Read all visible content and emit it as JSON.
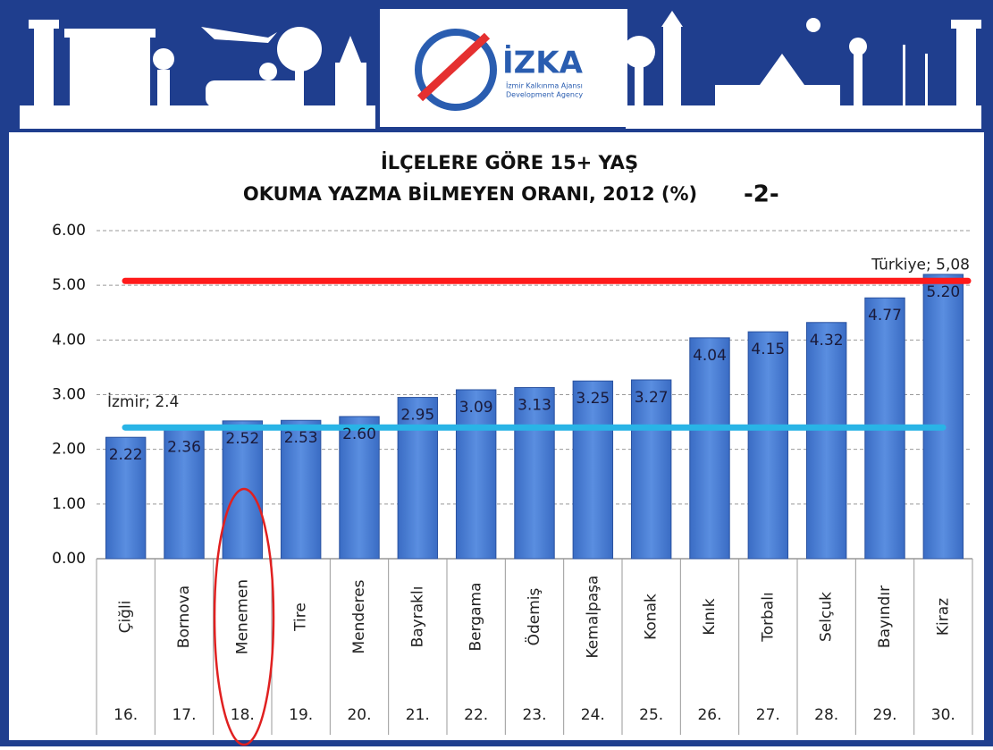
{
  "header": {
    "logo": "İZKA",
    "agency_tr": "İzmir Kalkınma Ajansı",
    "agency_en": "Development Agency"
  },
  "chart_data": {
    "type": "bar",
    "title_lines": [
      "İLÇELERE GÖRE 15+ YAŞ",
      "OKUMA YAZMA BİLMEYEN ORANI, 2012 (%)"
    ],
    "title_part": "-2-",
    "categories": [
      "Çiğli",
      "Bornova",
      "Menemen",
      "Tire",
      "Menderes",
      "Bayraklı",
      "Bergama",
      "Ödemiş",
      "Kemalpaşa",
      "Konak",
      "Kınık",
      "Torbalı",
      "Selçuk",
      "Bayındır",
      "Kiraz"
    ],
    "ranks": [
      "16.",
      "17.",
      "18.",
      "19.",
      "20.",
      "21.",
      "22.",
      "23.",
      "24.",
      "25.",
      "26.",
      "27.",
      "28.",
      "29.",
      "30."
    ],
    "values": [
      2.22,
      2.36,
      2.52,
      2.53,
      2.6,
      2.95,
      3.09,
      3.13,
      3.25,
      3.27,
      4.04,
      4.15,
      4.32,
      4.77,
      5.2
    ],
    "value_labels": [
      "2.22",
      "2.36",
      "2.52",
      "2.53",
      "2.60",
      "2.95",
      "3.09",
      "3.13",
      "3.25",
      "3.27",
      "4.04",
      "4.15",
      "4.32",
      "4.77",
      "5.20"
    ],
    "color": "#3a6cc4",
    "reference_lines": [
      {
        "label": "Türkiye; 5,08",
        "value": 5.08,
        "color": "#ff1a1a"
      },
      {
        "label": "İzmir; 2.4",
        "value": 2.4,
        "color": "#29b4e6"
      }
    ],
    "ylim": [
      0,
      6
    ],
    "yticks": [
      {
        "value": 0,
        "label": "0.00"
      },
      {
        "value": 1,
        "label": "1.00"
      },
      {
        "value": 2,
        "label": "2.00"
      },
      {
        "value": 3,
        "label": "3.00"
      },
      {
        "value": 4,
        "label": "4.00"
      },
      {
        "value": 5,
        "label": "5.00"
      },
      {
        "value": 6,
        "label": "6.00"
      }
    ],
    "grid": true
  }
}
